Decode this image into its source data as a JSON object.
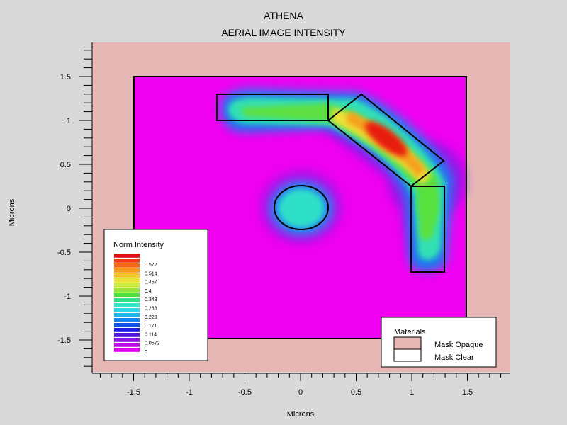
{
  "chart_data": {
    "type": "heatmap",
    "title": "ATHENA",
    "subtitle": "AERIAL IMAGE INTENSITY",
    "xlabel": "Microns",
    "ylabel": "Microns",
    "xlim": [
      -1.88,
      1.88
    ],
    "ylim": [
      -1.88,
      1.88
    ],
    "x_ticks": [
      "-1.5",
      "-1",
      "-0.5",
      "0",
      "0.5",
      "1",
      "1.5"
    ],
    "y_ticks": [
      "1.5",
      "1",
      "0.5",
      "0",
      "-0.5",
      "-1",
      "-1.5"
    ],
    "grid": false,
    "colorbar": {
      "title": "Norm Intensity",
      "labels": [
        "0.572",
        "0.514",
        "0.457",
        "0.4",
        "0.343",
        "0.286",
        "0.229",
        "0.171",
        "0.114",
        "0.0572",
        "0"
      ],
      "colors_top_to_bottom": [
        "#e01010",
        "#f03a10",
        "#f26a14",
        "#f59a1a",
        "#f5c326",
        "#eee23a",
        "#c8ec3a",
        "#8ee83a",
        "#4ee040",
        "#33e08a",
        "#2ee8c8",
        "#2cd8ea",
        "#1eb4ec",
        "#1684ee",
        "#1050ea",
        "#1c1ce6",
        "#5014e4",
        "#8a12e4",
        "#b80ce6",
        "#e000ee"
      ],
      "placement": "lower-left"
    },
    "materials_legend": {
      "title": "Materials",
      "entries": [
        {
          "label": "Mask Opaque",
          "color": "#e6b7b5"
        },
        {
          "label": "Mask Clear",
          "color": "#ffffff"
        }
      ],
      "placement": "lower-right"
    },
    "colors": {
      "background": "#d9d9d9",
      "mask_opaque": "#e6b7b5",
      "field_min": "#f000f0",
      "intensity_max": "#e01010"
    },
    "regions": {
      "field": [
        [
          -1.5,
          -1.5
        ],
        [
          1.5,
          1.5
        ]
      ],
      "top_bar": [
        [
          -0.75,
          1.0
        ],
        [
          0.25,
          1.3
        ]
      ],
      "diagonal": [
        [
          0.25,
          1.0
        ],
        [
          0.55,
          1.3
        ],
        [
          1.3,
          0.55
        ],
        [
          1.0,
          0.25
        ]
      ],
      "vertical_bar": [
        [
          1.0,
          -0.75
        ],
        [
          1.3,
          0.25
        ]
      ],
      "contact_center": [
        -0.0,
        0.0
      ],
      "contact_radius": [
        0.25,
        0.2
      ]
    },
    "peak_intensity": 0.572,
    "peak_location": [
      0.8,
      0.8
    ]
  }
}
